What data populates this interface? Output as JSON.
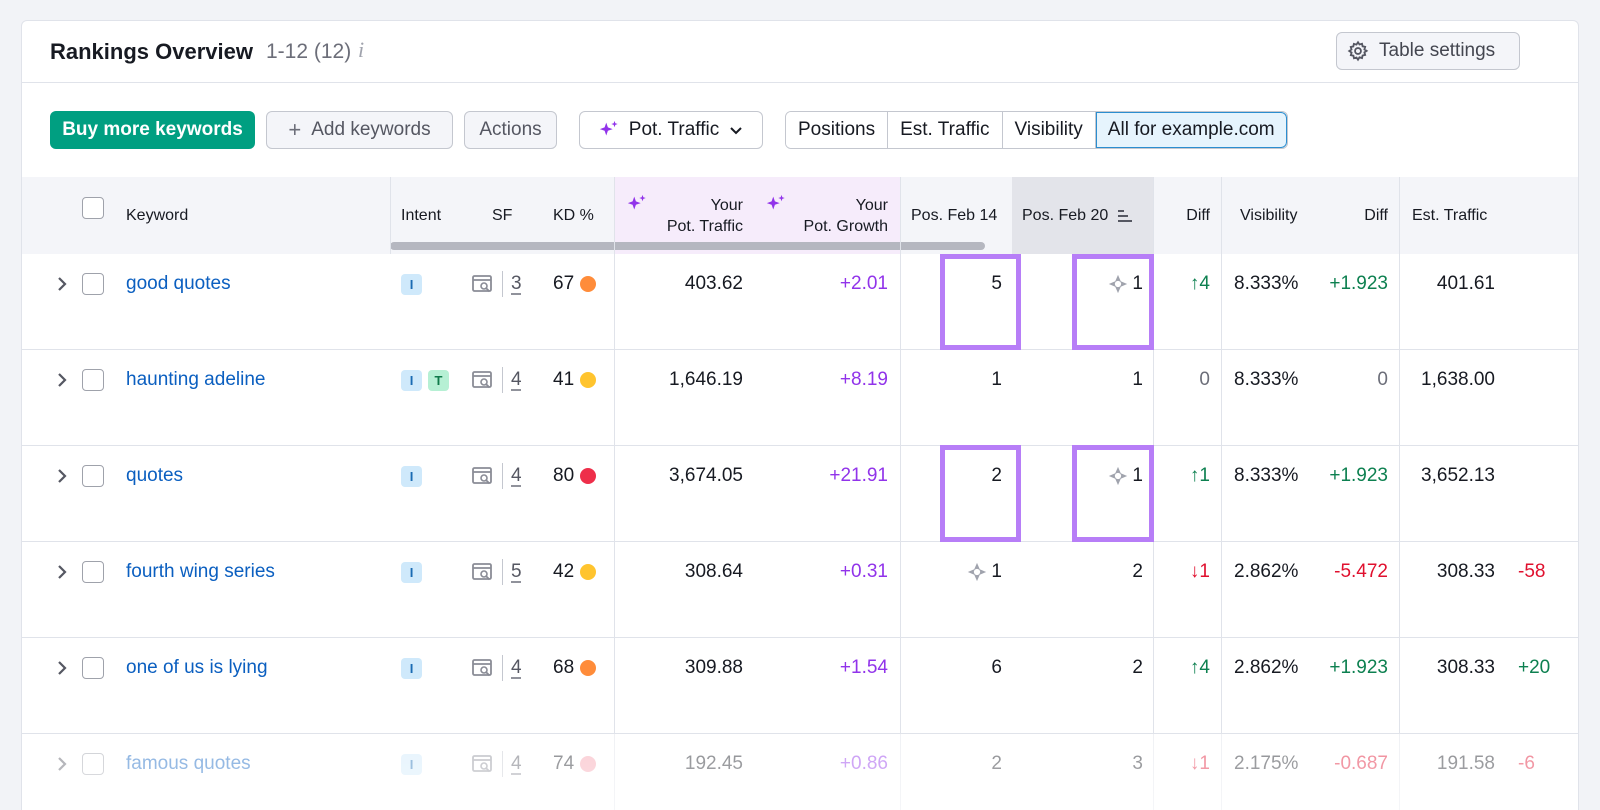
{
  "header": {
    "title": "Rankings Overview",
    "count": "1-12 (12)",
    "info_glyph": "i",
    "table_settings_label": "Table settings"
  },
  "toolbar": {
    "buy_label": "Buy more keywords",
    "add_label": "Add keywords",
    "actions_label": "Actions",
    "pot_traffic_label": "Pot. Traffic",
    "tabs": [
      "Positions",
      "Est. Traffic",
      "Visibility",
      "All for example.com"
    ],
    "active_tab": "All for example.com"
  },
  "columns": {
    "keyword": "Keyword",
    "intent": "Intent",
    "sf": "SF",
    "kd": "KD %",
    "pot_traffic_1": "Your",
    "pot_traffic_2": "Pot. Traffic",
    "pot_growth_1": "Your",
    "pot_growth_2": "Pot. Growth",
    "pos_feb14": "Pos. Feb 14",
    "pos_feb20": "Pos. Feb 20",
    "diff": "Diff",
    "visibility": "Visibility",
    "vis_diff": "Diff",
    "est_traffic": "Est. Traffic"
  },
  "colors": {
    "kd_orange": "#ff8c3a",
    "kd_yellow": "#ffc42e",
    "kd_red": "#ee2e4a",
    "kd_pink": "#f6a0ad",
    "highlight": "#b77ef7"
  },
  "rows": [
    {
      "keyword": "good quotes",
      "intents": [
        "I"
      ],
      "sf": "3",
      "kd": "67",
      "kd_color": "#ff8c3a",
      "pot_traffic": "403.62",
      "pot_growth": "+2.01",
      "pos14": "5",
      "pos14_feature": false,
      "pos20": "1",
      "pos20_feature": true,
      "diff": "4",
      "diff_dir": "up",
      "visibility": "8.333%",
      "vis_diff": "+1.923",
      "vis_dir": "up",
      "est_traffic": "401.61",
      "est_diff": ""
    },
    {
      "keyword": "haunting adeline",
      "intents": [
        "I",
        "T"
      ],
      "sf": "4",
      "kd": "41",
      "kd_color": "#ffc42e",
      "pot_traffic": "1,646.19",
      "pot_growth": "+8.19",
      "pos14": "1",
      "pos14_feature": false,
      "pos20": "1",
      "pos20_feature": false,
      "diff": "0",
      "diff_dir": "none",
      "visibility": "8.333%",
      "vis_diff": "0",
      "vis_dir": "none",
      "est_traffic": "1,638.00",
      "est_diff": ""
    },
    {
      "keyword": "quotes",
      "intents": [
        "I"
      ],
      "sf": "4",
      "kd": "80",
      "kd_color": "#ee2e4a",
      "pot_traffic": "3,674.05",
      "pot_growth": "+21.91",
      "pos14": "2",
      "pos14_feature": false,
      "pos20": "1",
      "pos20_feature": true,
      "diff": "1",
      "diff_dir": "up",
      "visibility": "8.333%",
      "vis_diff": "+1.923",
      "vis_dir": "up",
      "est_traffic": "3,652.13",
      "est_diff": ""
    },
    {
      "keyword": "fourth wing series",
      "intents": [
        "I"
      ],
      "sf": "5",
      "kd": "42",
      "kd_color": "#ffc42e",
      "pot_traffic": "308.64",
      "pot_growth": "+0.31",
      "pos14": "1",
      "pos14_feature": true,
      "pos20": "2",
      "pos20_feature": false,
      "diff": "1",
      "diff_dir": "down",
      "visibility": "2.862%",
      "vis_diff": "-5.472",
      "vis_dir": "down",
      "est_traffic": "308.33",
      "est_diff": "-58"
    },
    {
      "keyword": "one of us is lying",
      "intents": [
        "I"
      ],
      "sf": "4",
      "kd": "68",
      "kd_color": "#ff8c3a",
      "pot_traffic": "309.88",
      "pot_growth": "+1.54",
      "pos14": "6",
      "pos14_feature": false,
      "pos20": "2",
      "pos20_feature": false,
      "diff": "4",
      "diff_dir": "up",
      "visibility": "2.862%",
      "vis_diff": "+1.923",
      "vis_dir": "up",
      "est_traffic": "308.33",
      "est_diff": "+20"
    },
    {
      "keyword": "famous quotes",
      "intents": [
        "I"
      ],
      "sf": "4",
      "kd": "74",
      "kd_color": "#f6a0ad",
      "pot_traffic": "192.45",
      "pot_growth": "+0.86",
      "pos14": "2",
      "pos14_feature": false,
      "pos20": "3",
      "pos20_feature": false,
      "diff": "1",
      "diff_dir": "down",
      "visibility": "2.175%",
      "vis_diff": "-0.687",
      "vis_dir": "down",
      "est_traffic": "191.58",
      "est_diff": "-6"
    }
  ]
}
